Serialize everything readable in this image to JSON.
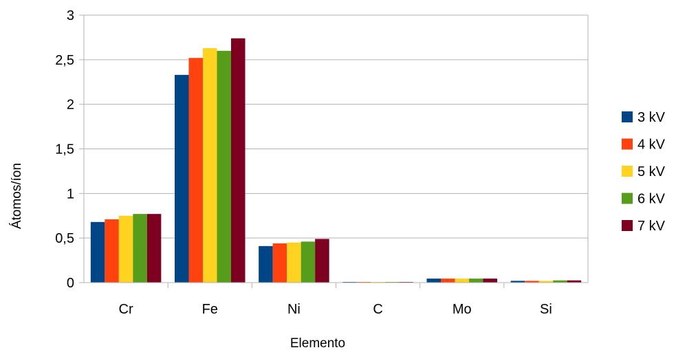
{
  "chart_data": {
    "type": "bar",
    "title": "",
    "xlabel": "Elemento",
    "ylabel": "Átomos/íon",
    "categories": [
      "Cr",
      "Fe",
      "Ni",
      "C",
      "Mo",
      "Si"
    ],
    "ylim": [
      0,
      3
    ],
    "yticks": [
      {
        "value": 0,
        "label": "0"
      },
      {
        "value": 0.5,
        "label": "0,5"
      },
      {
        "value": 1,
        "label": "1"
      },
      {
        "value": 1.5,
        "label": "1,5"
      },
      {
        "value": 2,
        "label": "2"
      },
      {
        "value": 2.5,
        "label": "2,5"
      },
      {
        "value": 3,
        "label": "3"
      }
    ],
    "grid": true,
    "legend_position": "right",
    "series": [
      {
        "name": "3 kV",
        "color": "#004586",
        "values": [
          0.68,
          2.33,
          0.41,
          0.005,
          0.045,
          0.02
        ]
      },
      {
        "name": "4 kV",
        "color": "#ff420e",
        "values": [
          0.71,
          2.52,
          0.44,
          0.005,
          0.045,
          0.02
        ]
      },
      {
        "name": "5 kV",
        "color": "#ffd320",
        "values": [
          0.75,
          2.63,
          0.45,
          0.005,
          0.045,
          0.02
        ]
      },
      {
        "name": "6 kV",
        "color": "#579d1c",
        "values": [
          0.77,
          2.6,
          0.46,
          0.005,
          0.045,
          0.025
        ]
      },
      {
        "name": "7 kV",
        "color": "#7e0021",
        "values": [
          0.77,
          2.74,
          0.49,
          0.005,
          0.045,
          0.025
        ]
      }
    ]
  }
}
